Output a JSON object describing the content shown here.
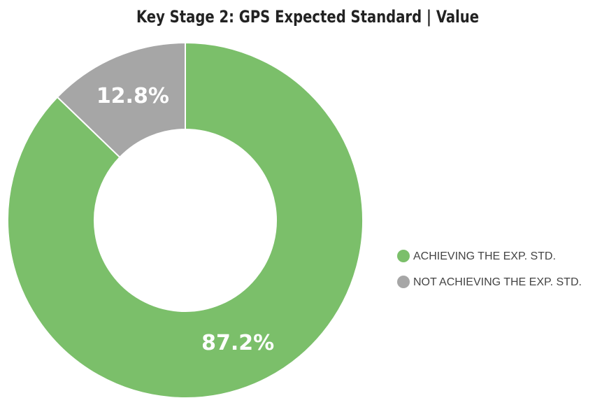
{
  "chart_data": {
    "type": "donut",
    "title": "Key Stage 2: GPS Expected Standard | Value",
    "categories": [
      "ACHIEVING THE EXP. STD.",
      "NOT ACHIEVING THE EXP. STD."
    ],
    "values": [
      87.2,
      12.8
    ],
    "value_labels": [
      "87.2%",
      "12.8%"
    ],
    "colors": [
      "#7bbf6a",
      "#a6a6a6"
    ],
    "legend": "right"
  }
}
